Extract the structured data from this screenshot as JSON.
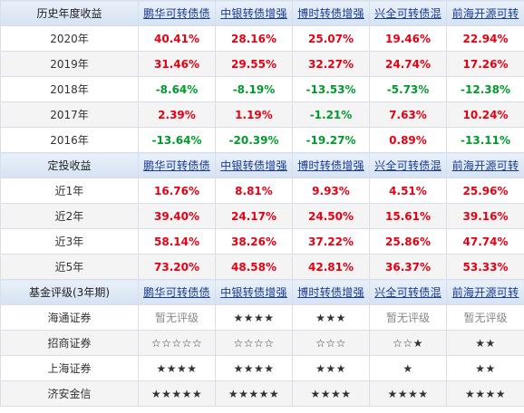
{
  "sections": [
    {
      "header_label": "历史年度收益",
      "funds": [
        "鹏华可转债债",
        "中银转债增强",
        "博时转债增强",
        "兴全可转债混",
        "前海开源可转"
      ],
      "rows": [
        {
          "label": "2020年",
          "values": [
            "40.41%",
            "28.16%",
            "25.07%",
            "19.46%",
            "22.94%"
          ]
        },
        {
          "label": "2019年",
          "values": [
            "31.46%",
            "29.55%",
            "32.27%",
            "24.74%",
            "17.26%"
          ]
        },
        {
          "label": "2018年",
          "values": [
            "-8.64%",
            "-8.19%",
            "-13.53%",
            "-5.73%",
            "-12.38%"
          ]
        },
        {
          "label": "2017年",
          "values": [
            "2.39%",
            "1.19%",
            "-1.21%",
            "7.63%",
            "10.24%"
          ]
        },
        {
          "label": "2016年",
          "values": [
            "-13.64%",
            "-20.39%",
            "-19.27%",
            "0.89%",
            "-13.11%"
          ]
        }
      ]
    },
    {
      "header_label": "定投收益",
      "funds": [
        "鹏华可转债债",
        "中银转债增强",
        "博时转债增强",
        "兴全可转债混",
        "前海开源可转"
      ],
      "rows": [
        {
          "label": "近1年",
          "values": [
            "16.76%",
            "8.81%",
            "9.93%",
            "4.51%",
            "25.96%"
          ]
        },
        {
          "label": "近2年",
          "values": [
            "39.40%",
            "24.17%",
            "24.50%",
            "15.61%",
            "39.16%"
          ]
        },
        {
          "label": "近3年",
          "values": [
            "58.14%",
            "38.26%",
            "37.22%",
            "25.86%",
            "47.74%"
          ]
        },
        {
          "label": "近5年",
          "values": [
            "73.20%",
            "48.58%",
            "42.81%",
            "36.37%",
            "53.33%"
          ]
        }
      ]
    },
    {
      "header_label": "基金评级(3年期)",
      "funds": [
        "鹏华可转债债",
        "中银转债增强",
        "博时转债增强",
        "兴全可转债混",
        "前海开源可转"
      ],
      "rows": [
        {
          "label": "海通证券",
          "values": [
            "暂无评级",
            "★★★★",
            "★★★",
            "暂无评级",
            "暂无评级"
          ]
        },
        {
          "label": "招商证券",
          "values": [
            "☆☆☆☆☆",
            "☆☆☆☆",
            "☆☆☆",
            "☆☆★",
            "★★"
          ]
        },
        {
          "label": "上海证券",
          "values": [
            "★★★★",
            "★★★★",
            "★★★",
            "★",
            "★★"
          ]
        },
        {
          "label": "济安金信",
          "values": [
            "★★★★★",
            "★★★★★",
            "★★★★",
            "★★★★",
            "★★★★"
          ]
        }
      ]
    }
  ]
}
